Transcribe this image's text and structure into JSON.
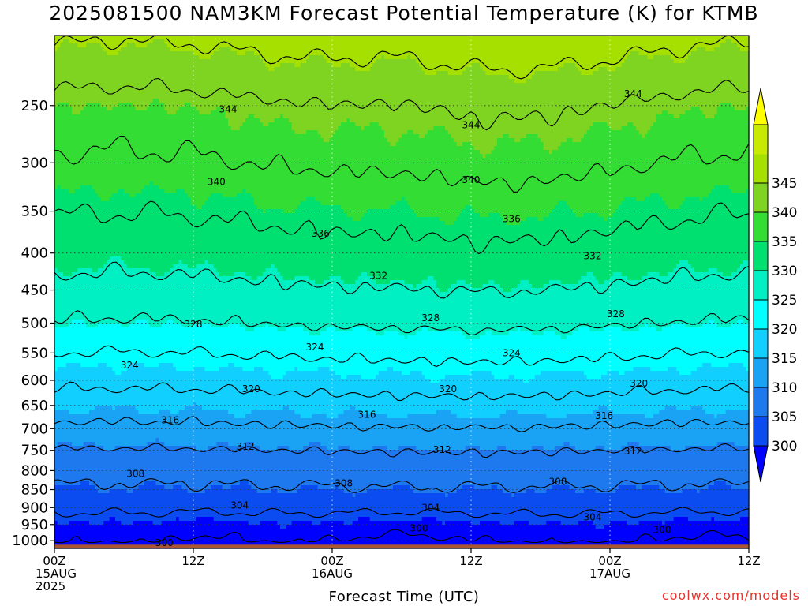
{
  "title": "2025081500 NAM3KM Forecast Potential Temperature (K) for KTMB",
  "x_axis_label": "Forecast Time (UTC)",
  "credit": "coolwx.com/models",
  "colors": {
    "bands": [
      "#0000ff",
      "#0a4cf0",
      "#1e78ee",
      "#1aa2f4",
      "#11d0ff",
      "#00ffff",
      "#00f0c4",
      "#00e070",
      "#33dd33",
      "#7ed420",
      "#a6e000",
      "#c8ea00",
      "#ffff00"
    ],
    "ground": "#aa5533",
    "contour": "#000000",
    "grid": "#888888",
    "credit": "#e8302c"
  },
  "chart_data": {
    "type": "heatmap",
    "title": "2025081500 NAM3KM Forecast Potential Temperature (K) for KTMB",
    "xlabel": "Forecast Time (UTC)",
    "ylabel": "",
    "x_unit": "forecast hours from 2025081500",
    "x_range": [
      0,
      60
    ],
    "x_ticks": [
      {
        "hour": 0,
        "lines": [
          "00Z",
          "15AUG",
          "2025"
        ]
      },
      {
        "hour": 12,
        "lines": [
          "12Z"
        ]
      },
      {
        "hour": 24,
        "lines": [
          "00Z",
          "16AUG"
        ]
      },
      {
        "hour": 36,
        "lines": [
          "12Z"
        ]
      },
      {
        "hour": 48,
        "lines": [
          "00Z",
          "17AUG"
        ]
      },
      {
        "hour": 60,
        "lines": [
          "12Z"
        ]
      }
    ],
    "y_scale": "log (pressure, hPa, inverted)",
    "y_range": [
      1025,
      200
    ],
    "y_ticks": [
      250,
      300,
      350,
      400,
      450,
      500,
      550,
      600,
      650,
      700,
      750,
      800,
      850,
      900,
      950,
      1000
    ],
    "ground_pressure": 1013,
    "colorbar": {
      "ticks": [
        345,
        340,
        335,
        330,
        325,
        320,
        315,
        310,
        305,
        300
      ],
      "min": 297.5,
      "max": 347.5,
      "step": 5,
      "extend": "both"
    },
    "contour_interval": 4,
    "theta_profile": {
      "pressure_hpa": [
        1013,
        1000,
        950,
        900,
        850,
        800,
        750,
        700,
        650,
        600,
        550,
        500,
        450,
        400,
        350,
        300,
        250,
        200
      ],
      "theta_k": [
        299,
        300.3,
        302.2,
        305,
        307.5,
        309.5,
        312,
        315.5,
        318.5,
        321.5,
        324.5,
        328.3,
        331.5,
        334.5,
        337.2,
        340.5,
        343.8,
        350
      ]
    },
    "contour_labels": [
      {
        "hour": 9.5,
        "hpa": 1007,
        "value": "300"
      },
      {
        "hour": 31.5,
        "hpa": 961,
        "value": "300"
      },
      {
        "hour": 52.5,
        "hpa": 966,
        "value": "300"
      },
      {
        "hour": 16,
        "hpa": 894,
        "value": "304"
      },
      {
        "hour": 32.5,
        "hpa": 901,
        "value": "304"
      },
      {
        "hour": 46.5,
        "hpa": 928,
        "value": "304"
      },
      {
        "hour": 7,
        "hpa": 808,
        "value": "308"
      },
      {
        "hour": 25,
        "hpa": 833,
        "value": "308"
      },
      {
        "hour": 43.5,
        "hpa": 829,
        "value": "308"
      },
      {
        "hour": 16.5,
        "hpa": 741,
        "value": "312"
      },
      {
        "hour": 33.5,
        "hpa": 749,
        "value": "312"
      },
      {
        "hour": 50,
        "hpa": 752,
        "value": "312"
      },
      {
        "hour": 10,
        "hpa": 681,
        "value": "316"
      },
      {
        "hour": 27,
        "hpa": 669,
        "value": "316"
      },
      {
        "hour": 47.5,
        "hpa": 672,
        "value": "316"
      },
      {
        "hour": 17,
        "hpa": 617,
        "value": "320"
      },
      {
        "hour": 34,
        "hpa": 617,
        "value": "320"
      },
      {
        "hour": 50.5,
        "hpa": 606,
        "value": "320"
      },
      {
        "hour": 6.5,
        "hpa": 572,
        "value": "324"
      },
      {
        "hour": 22.5,
        "hpa": 540,
        "value": "324"
      },
      {
        "hour": 39.5,
        "hpa": 550,
        "value": "324"
      },
      {
        "hour": 12,
        "hpa": 502,
        "value": "328"
      },
      {
        "hour": 32.5,
        "hpa": 492,
        "value": "328"
      },
      {
        "hour": 48.5,
        "hpa": 486,
        "value": "328"
      },
      {
        "hour": 28,
        "hpa": 430,
        "value": "332"
      },
      {
        "hour": 46.5,
        "hpa": 404,
        "value": "332"
      },
      {
        "hour": 23,
        "hpa": 376,
        "value": "336"
      },
      {
        "hour": 39.5,
        "hpa": 359,
        "value": "336"
      },
      {
        "hour": 14,
        "hpa": 319,
        "value": "340"
      },
      {
        "hour": 36,
        "hpa": 317,
        "value": "340"
      },
      {
        "hour": 15,
        "hpa": 253,
        "value": "344"
      },
      {
        "hour": 36,
        "hpa": 266,
        "value": "344"
      },
      {
        "hour": 50,
        "hpa": 241,
        "value": "344"
      }
    ],
    "notes": "Filled bands every 5 K (300-345) with black theta contours every 4 K; pockets of theta < 300 K near the surface around 13Z 15AUG and 23Z 16AUG-18Z 16AUG and 18Z-12Z 17AUG."
  }
}
